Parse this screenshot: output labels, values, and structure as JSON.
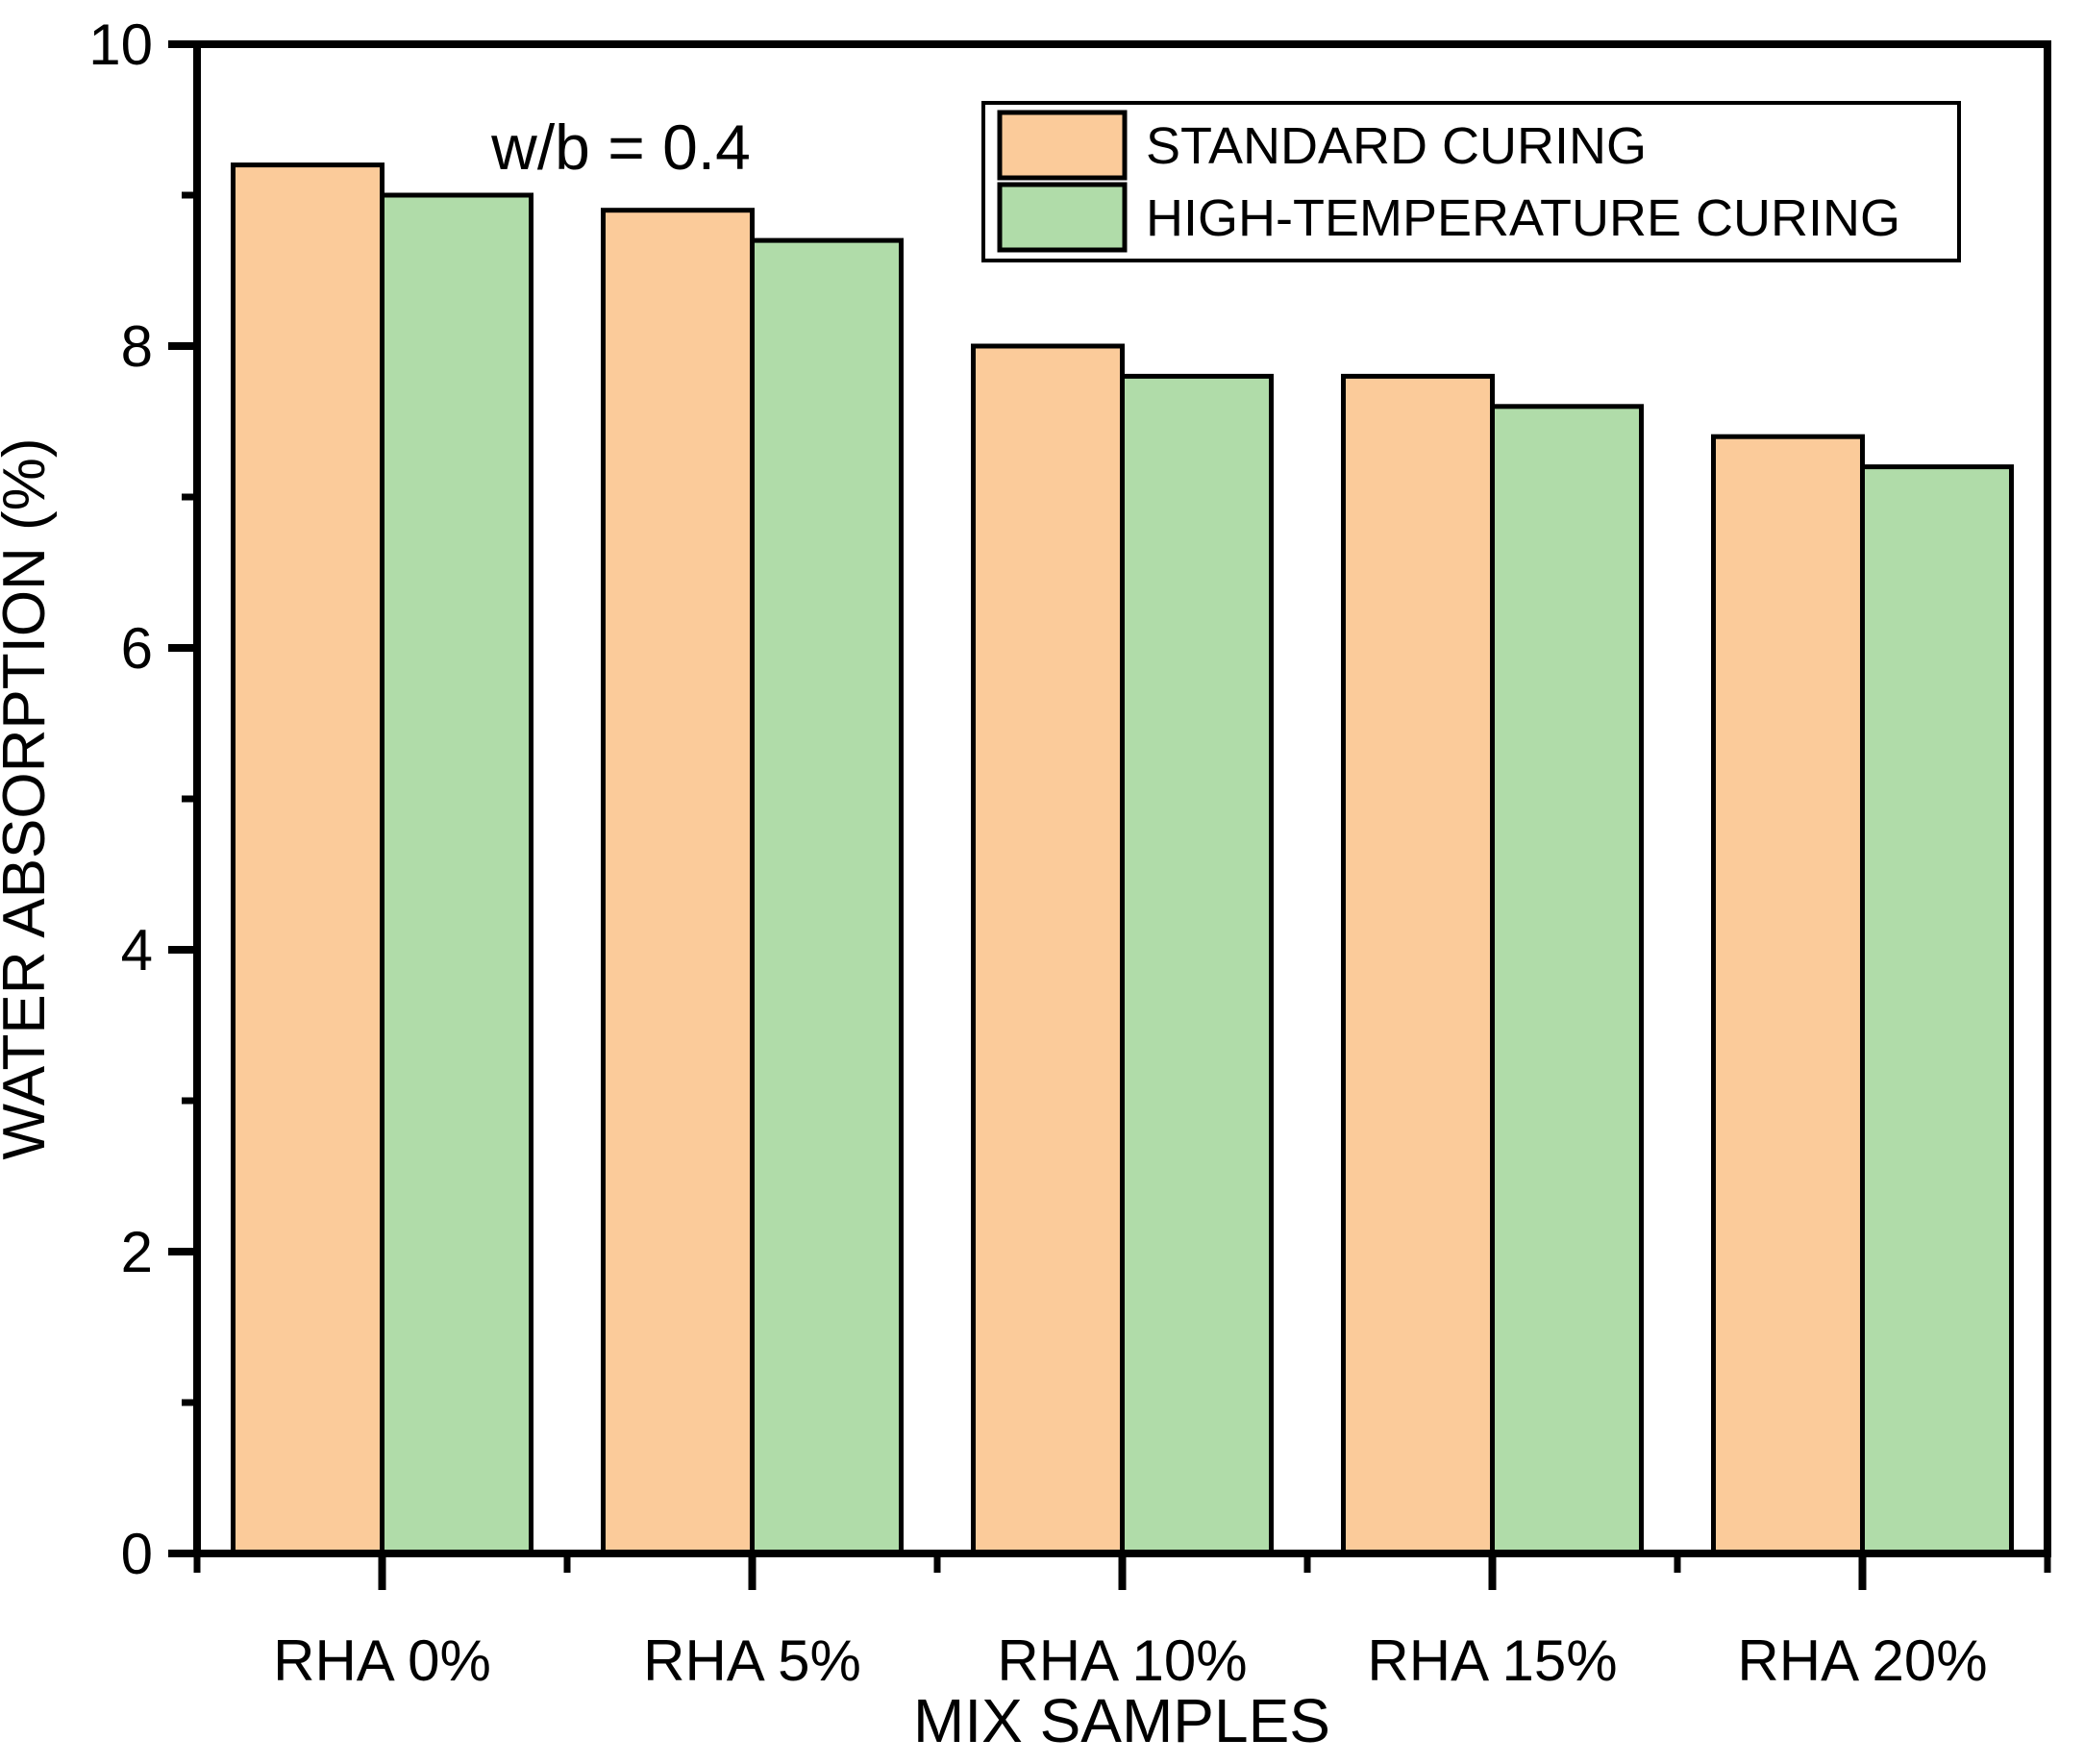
{
  "chart_data": {
    "type": "bar",
    "title": "",
    "annotation": "w/b = 0.4",
    "xlabel": "MIX SAMPLES",
    "ylabel": "WATER ABSORPTION (%)",
    "categories": [
      "RHA 0%",
      "RHA 5%",
      "RHA 10%",
      "RHA 15%",
      "RHA 20%"
    ],
    "series": [
      {
        "name": "STANDARD CURING",
        "color": "#FBCB9A",
        "values": [
          9.2,
          8.9,
          8.0,
          7.8,
          7.4
        ]
      },
      {
        "name": "HIGH-TEMPERATURE CURING",
        "color": "#B0DCA9",
        "values": [
          9.0,
          8.7,
          7.8,
          7.6,
          7.2
        ]
      }
    ],
    "ylim": [
      0,
      10
    ],
    "y_major_ticks": [
      0,
      2,
      4,
      6,
      8,
      10
    ],
    "y_minor_ticks": [
      1,
      3,
      5,
      7,
      9
    ],
    "grid": false,
    "legend_position": "top-right",
    "bar_outline_color": "#000000",
    "axis_color": "#000000",
    "background_color": "#ffffff"
  }
}
